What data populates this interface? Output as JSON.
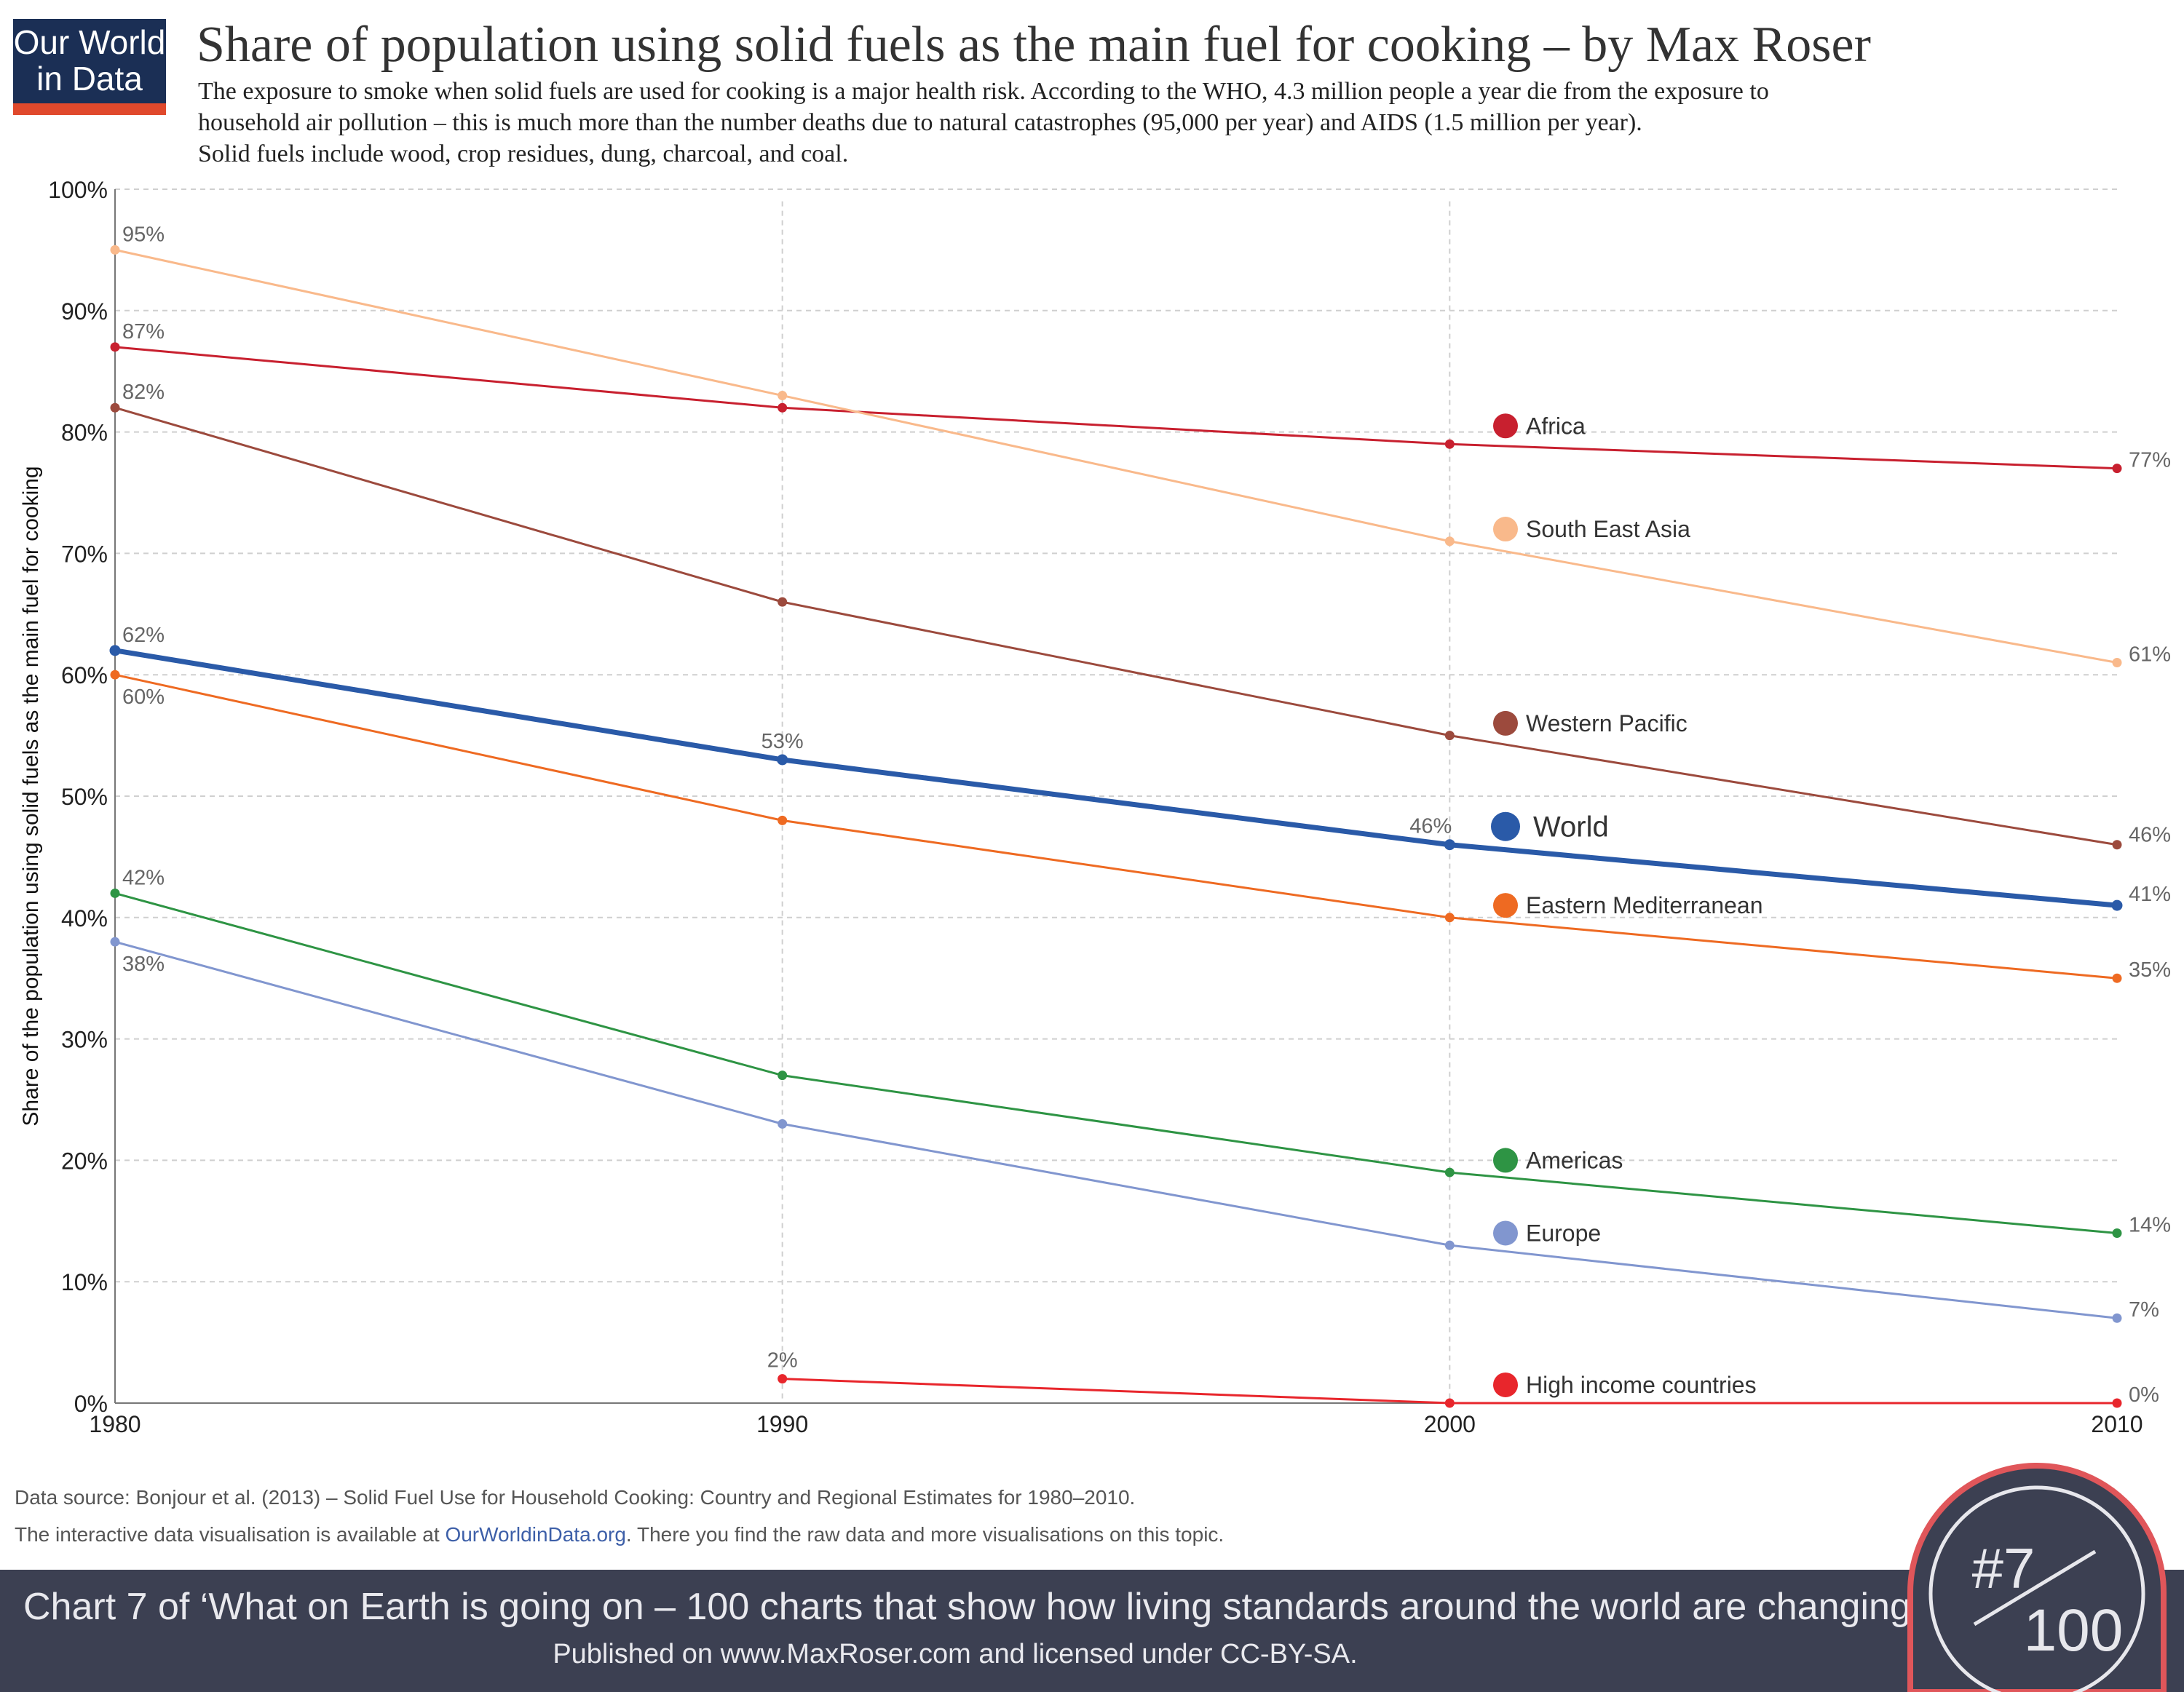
{
  "logo": {
    "line1": "Our World",
    "line2": "in Data"
  },
  "title": "Share of population using solid fuels as the main fuel for cooking – by Max Roser",
  "subtitle": {
    "line1": "The exposure to smoke when solid fuels are used for cooking is a major health risk. According to the WHO, 4.3 million people a year die from the exposure to",
    "line2": "household air pollution – this is much more than the number deaths due to natural catastrophes (95,000 per year) and AIDS (1.5 million per year).",
    "line3": "Solid fuels include wood, crop residues, dung, charcoal, and coal."
  },
  "chart_data": {
    "type": "line",
    "ylabel": "Share of the population using solid fuels as the main fuel for cooking",
    "xlabel": "",
    "x": [
      1980,
      1990,
      2000,
      2010
    ],
    "xlim": [
      1980,
      2010
    ],
    "ylim": [
      0,
      100
    ],
    "y_ticks": [
      0,
      10,
      20,
      30,
      40,
      50,
      60,
      70,
      80,
      90,
      100
    ],
    "y_tick_labels": [
      "0%",
      "10%",
      "20%",
      "30%",
      "40%",
      "50%",
      "60%",
      "70%",
      "80%",
      "90%",
      "100%"
    ],
    "x_tick_labels": [
      "1980",
      "1990",
      "2000",
      "2010"
    ],
    "grid": true,
    "series": [
      {
        "name": "Africa",
        "color": "#c8202f",
        "values": [
          87,
          82,
          79,
          77
        ]
      },
      {
        "name": "South East Asia",
        "color": "#f9b98b",
        "values": [
          95,
          83,
          71,
          61
        ]
      },
      {
        "name": "Western Pacific",
        "color": "#9c4a3d",
        "values": [
          82,
          66,
          55,
          46
        ]
      },
      {
        "name": "World",
        "color": "#2a5aa8",
        "values": [
          62,
          53,
          46,
          41
        ]
      },
      {
        "name": "Eastern Mediterranean",
        "color": "#ee6a22",
        "values": [
          60,
          48,
          40,
          35
        ]
      },
      {
        "name": "Americas",
        "color": "#2e9444",
        "values": [
          42,
          27,
          19,
          14
        ]
      },
      {
        "name": "Europe",
        "color": "#8196cf",
        "values": [
          38,
          23,
          13,
          7
        ]
      },
      {
        "name": "High income countries",
        "color": "#e8262c",
        "x": [
          1990,
          2000,
          2010
        ],
        "values": [
          2,
          0,
          0
        ]
      }
    ],
    "data_labels": [
      {
        "series": "South East Asia",
        "x": 1980,
        "text": "95%"
      },
      {
        "series": "Africa",
        "x": 1980,
        "text": "87%"
      },
      {
        "series": "Western Pacific",
        "x": 1980,
        "text": "82%"
      },
      {
        "series": "World",
        "x": 1980,
        "text": "62%"
      },
      {
        "series": "Eastern Mediterranean",
        "x": 1980,
        "text": "60%"
      },
      {
        "series": "Americas",
        "x": 1980,
        "text": "42%"
      },
      {
        "series": "Europe",
        "x": 1980,
        "text": "38%"
      },
      {
        "series": "World",
        "x": 1990,
        "text": "53%"
      },
      {
        "series": "High income countries",
        "x": 1990,
        "text": "2%"
      },
      {
        "series": "World",
        "x": 2000,
        "text": "46%"
      },
      {
        "series": "Africa",
        "x": 2010,
        "text": "77%"
      },
      {
        "series": "South East Asia",
        "x": 2010,
        "text": "61%"
      },
      {
        "series": "Western Pacific",
        "x": 2010,
        "text": "46%"
      },
      {
        "series": "World",
        "x": 2010,
        "text": "41%"
      },
      {
        "series": "Eastern Mediterranean",
        "x": 2010,
        "text": "35%"
      },
      {
        "series": "Americas",
        "x": 2010,
        "text": "14%"
      },
      {
        "series": "Europe",
        "x": 2010,
        "text": "7%"
      },
      {
        "series": "High income countries",
        "x": 2010,
        "text": "0%"
      }
    ],
    "legend": "inline labels near the 2000 gridline"
  },
  "source": {
    "data_source": "Data source:  Bonjour et al. (2013) – Solid Fuel Use for Household Cooking: Country and Regional Estimates for 1980–2010.",
    "note_pre": "The interactive data visualisation is available at ",
    "note_link": "OurWorldinData.org",
    "note_post": ". There you find the raw data and more visualisations on this topic."
  },
  "footer": {
    "line1": "Chart 7 of ‘What on Earth is going on – 100 charts that show how living standards around the world are changing’.",
    "line2": "Published on www.MaxRoser.com and licensed under CC-BY-SA."
  },
  "badge": {
    "number": "#7",
    "total": "100"
  }
}
